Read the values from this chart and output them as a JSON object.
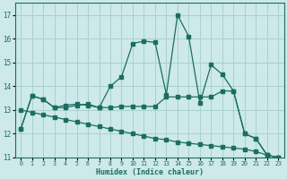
{
  "xlabel": "Humidex (Indice chaleur)",
  "xlim": [
    -0.5,
    23.5
  ],
  "ylim": [
    11.0,
    17.5
  ],
  "yticks": [
    11,
    12,
    13,
    14,
    15,
    16,
    17
  ],
  "xticks": [
    0,
    1,
    2,
    3,
    4,
    5,
    6,
    7,
    8,
    9,
    10,
    11,
    12,
    13,
    14,
    15,
    16,
    17,
    18,
    19,
    20,
    21,
    22,
    23
  ],
  "background_color": "#cde9e9",
  "grid_color": "#aad0d0",
  "line_color": "#1a6e60",
  "line1_x": [
    0,
    1,
    2,
    3,
    4,
    5,
    6,
    7,
    8,
    9,
    10,
    11,
    12,
    13,
    14,
    15,
    16,
    17,
    18,
    19,
    20,
    21,
    22,
    23
  ],
  "line1_y": [
    12.2,
    13.6,
    13.45,
    13.1,
    13.1,
    13.2,
    13.25,
    13.1,
    14.0,
    14.4,
    15.8,
    15.9,
    15.85,
    13.65,
    17.0,
    16.1,
    13.3,
    14.9,
    14.5,
    13.8,
    12.0,
    11.8,
    11.1,
    11.0
  ],
  "line2_x": [
    0,
    1,
    2,
    3,
    4,
    5,
    6,
    7,
    8,
    9,
    10,
    11,
    12,
    13,
    14,
    15,
    16,
    17,
    18,
    19,
    20,
    21,
    22,
    23
  ],
  "line2_y": [
    12.2,
    13.6,
    13.45,
    13.1,
    13.2,
    13.25,
    13.2,
    13.1,
    13.1,
    13.15,
    13.15,
    13.15,
    13.15,
    13.55,
    13.55,
    13.55,
    13.55,
    13.55,
    13.8,
    13.8,
    12.0,
    11.8,
    11.1,
    11.0
  ],
  "line3_x": [
    0,
    1,
    2,
    3,
    4,
    5,
    6,
    7,
    8,
    9,
    10,
    11,
    12,
    13,
    14,
    15,
    16,
    17,
    18,
    19,
    20,
    21,
    22,
    23
  ],
  "line3_y": [
    13.0,
    12.9,
    12.8,
    12.7,
    12.6,
    12.5,
    12.4,
    12.3,
    12.2,
    12.1,
    12.0,
    11.9,
    11.8,
    11.75,
    11.65,
    11.6,
    11.55,
    11.5,
    11.45,
    11.4,
    11.35,
    11.25,
    11.1,
    11.0
  ]
}
